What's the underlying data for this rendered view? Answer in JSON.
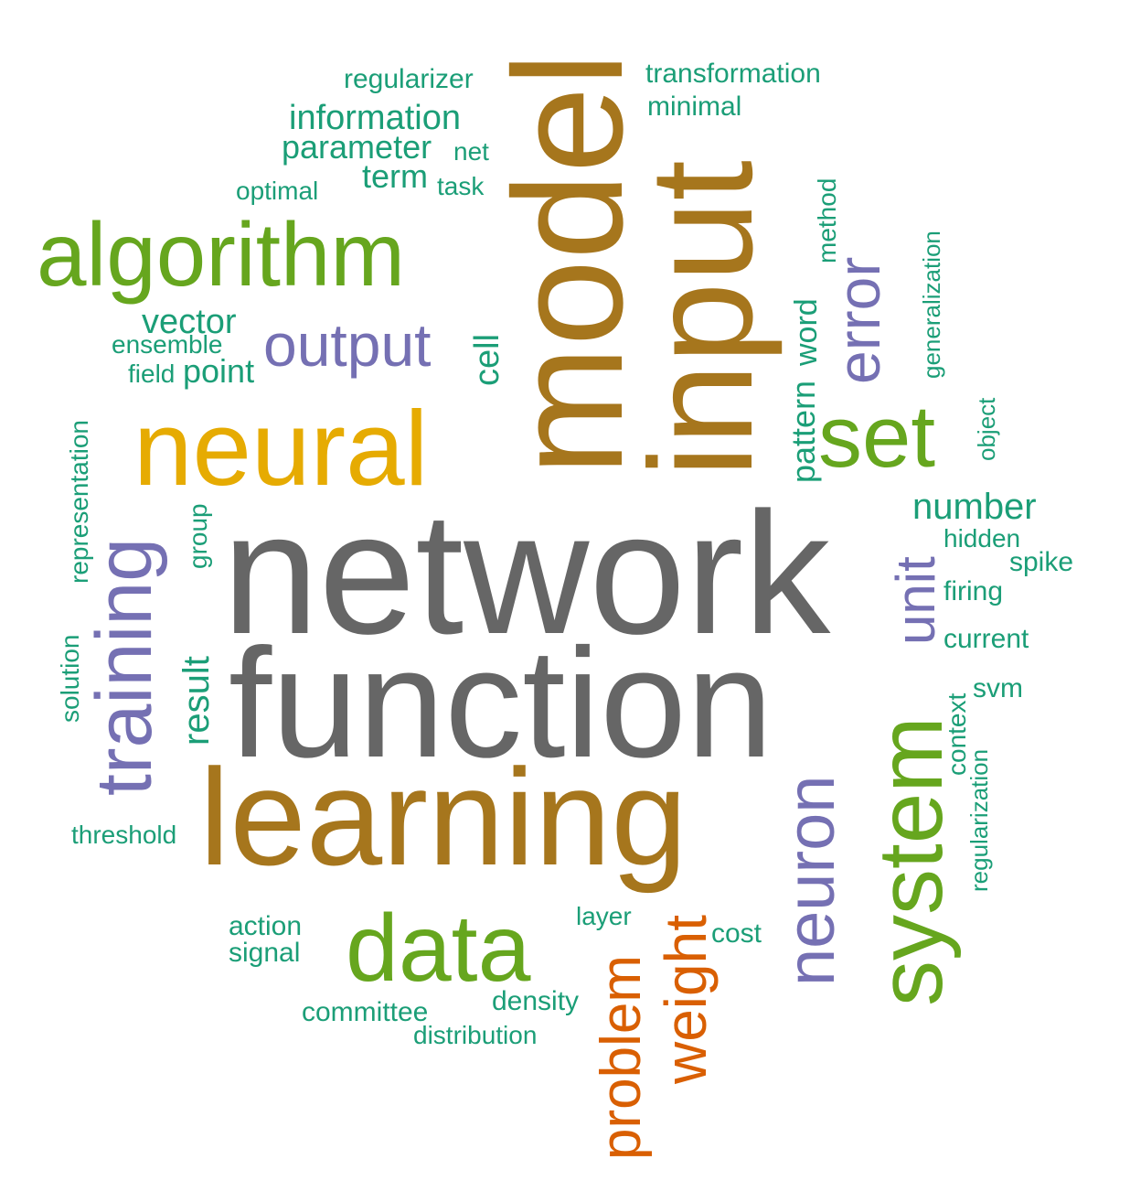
{
  "colors": {
    "gray": "#666666",
    "olive": "#a6761d",
    "gold": "#e6ab02",
    "green": "#66a61e",
    "purple": "#7570b3",
    "teal": "#1b9e77",
    "orange": "#d95f02"
  },
  "words": [
    {
      "text": "network",
      "color": "gray"
    },
    {
      "text": "function",
      "color": "gray"
    },
    {
      "text": "learning",
      "color": "olive"
    },
    {
      "text": "model",
      "color": "olive"
    },
    {
      "text": "input",
      "color": "olive"
    },
    {
      "text": "neural",
      "color": "gold"
    },
    {
      "text": "algorithm",
      "color": "green"
    },
    {
      "text": "data",
      "color": "green"
    },
    {
      "text": "system",
      "color": "green"
    },
    {
      "text": "set",
      "color": "green"
    },
    {
      "text": "training",
      "color": "purple"
    },
    {
      "text": "output",
      "color": "purple"
    },
    {
      "text": "neuron",
      "color": "purple"
    },
    {
      "text": "error",
      "color": "purple"
    },
    {
      "text": "unit",
      "color": "purple"
    },
    {
      "text": "weight",
      "color": "orange"
    },
    {
      "text": "problem",
      "color": "orange"
    },
    {
      "text": "result",
      "color": "teal"
    },
    {
      "text": "number",
      "color": "teal"
    },
    {
      "text": "vector",
      "color": "teal"
    },
    {
      "text": "information",
      "color": "teal"
    },
    {
      "text": "parameter",
      "color": "teal"
    },
    {
      "text": "point",
      "color": "teal"
    },
    {
      "text": "cell",
      "color": "teal"
    },
    {
      "text": "pattern",
      "color": "teal"
    },
    {
      "text": "word",
      "color": "teal"
    },
    {
      "text": "term",
      "color": "teal"
    },
    {
      "text": "representation",
      "color": "teal"
    },
    {
      "text": "regularizer",
      "color": "teal"
    },
    {
      "text": "transformation",
      "color": "teal"
    },
    {
      "text": "minimal",
      "color": "teal"
    },
    {
      "text": "net",
      "color": "teal"
    },
    {
      "text": "task",
      "color": "teal"
    },
    {
      "text": "optimal",
      "color": "teal"
    },
    {
      "text": "ensemble",
      "color": "teal"
    },
    {
      "text": "field",
      "color": "teal"
    },
    {
      "text": "method",
      "color": "teal"
    },
    {
      "text": "generalization",
      "color": "teal"
    },
    {
      "text": "object",
      "color": "teal"
    },
    {
      "text": "hidden",
      "color": "teal"
    },
    {
      "text": "spike",
      "color": "teal"
    },
    {
      "text": "firing",
      "color": "teal"
    },
    {
      "text": "current",
      "color": "teal"
    },
    {
      "text": "svm",
      "color": "teal"
    },
    {
      "text": "context",
      "color": "teal"
    },
    {
      "text": "regularization",
      "color": "teal"
    },
    {
      "text": "group",
      "color": "teal"
    },
    {
      "text": "solution",
      "color": "teal"
    },
    {
      "text": "threshold",
      "color": "teal"
    },
    {
      "text": "action",
      "color": "teal"
    },
    {
      "text": "signal",
      "color": "teal"
    },
    {
      "text": "committee",
      "color": "teal"
    },
    {
      "text": "distribution",
      "color": "teal"
    },
    {
      "text": "density",
      "color": "teal"
    },
    {
      "text": "layer",
      "color": "teal"
    },
    {
      "text": "cost",
      "color": "teal"
    }
  ]
}
